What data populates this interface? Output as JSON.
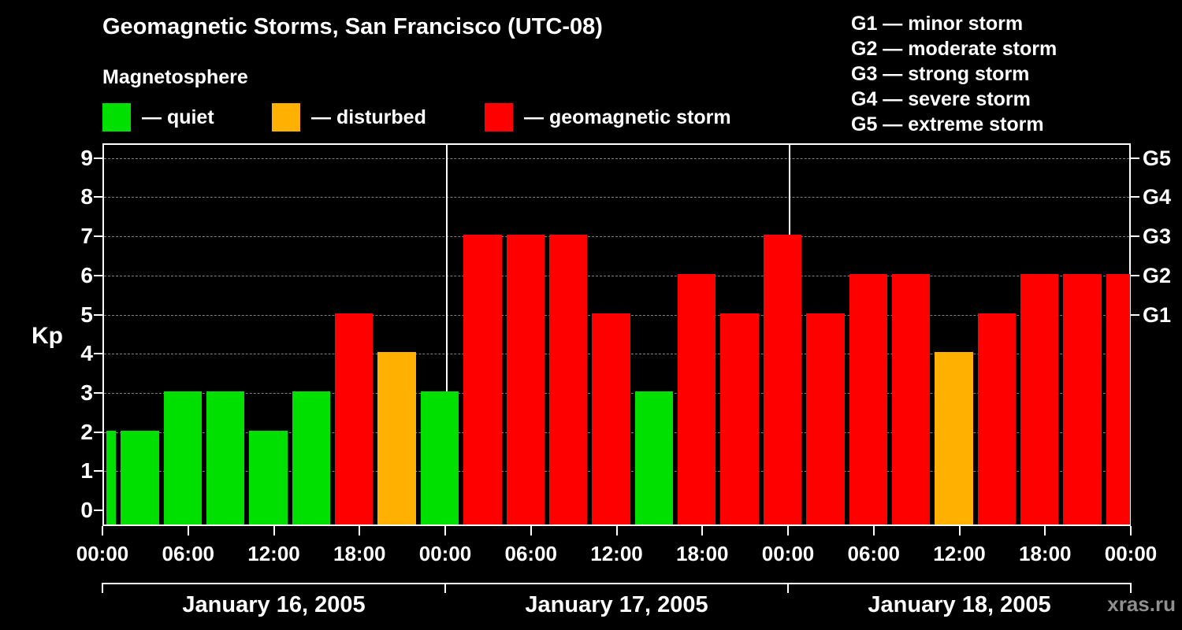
{
  "legend": {
    "heading": "Magnetosphere",
    "items": [
      {
        "key": "quiet",
        "label": "— quiet"
      },
      {
        "key": "disturbed",
        "label": "— disturbed"
      },
      {
        "key": "storm",
        "label": "— geomagnetic storm"
      }
    ]
  },
  "g_scale_legend": {
    "items": [
      "G1 — minor storm",
      "G2 — moderate storm",
      "G3 — strong storm",
      "G4 — severe storm",
      "G5 — extreme storm"
    ]
  },
  "watermark": "xras.ru",
  "colors": {
    "quiet": "#00e000",
    "disturbed": "#ffb000",
    "storm": "#ff0000",
    "background": "#000000",
    "text": "#ffffff",
    "grid": "#808080",
    "axis": "#ffffff",
    "watermark": "#8f8f8f"
  },
  "chart_data": {
    "type": "bar",
    "title": "Geomagnetic Storms, San Francisco (UTC-08)",
    "ylabel": "Kp",
    "ylim": [
      0,
      9
    ],
    "grid": "dashed-horizontal",
    "legend_position": "top",
    "y_ticks": [
      "0",
      "1",
      "2",
      "3",
      "4",
      "5",
      "6",
      "7",
      "8",
      "9"
    ],
    "g_ticks": [
      {
        "label": "G1",
        "kp": 5
      },
      {
        "label": "G2",
        "kp": 6
      },
      {
        "label": "G3",
        "kp": 7
      },
      {
        "label": "G4",
        "kp": 8
      },
      {
        "label": "G5",
        "kp": 9
      }
    ],
    "x_tick_labels": [
      "00:00",
      "06:00",
      "12:00",
      "18:00",
      "00:00",
      "06:00",
      "12:00",
      "18:00",
      "00:00",
      "06:00",
      "12:00",
      "18:00",
      "00:00"
    ],
    "days": [
      {
        "label": "January 16, 2005"
      },
      {
        "label": "January 17, 2005"
      },
      {
        "label": "January 18, 2005"
      }
    ],
    "bars": [
      {
        "start_hour": 0,
        "duration_hours": 1,
        "kp": 2,
        "status": "quiet"
      },
      {
        "start_hour": 1,
        "duration_hours": 3,
        "kp": 2,
        "status": "quiet"
      },
      {
        "start_hour": 4,
        "duration_hours": 3,
        "kp": 3,
        "status": "quiet"
      },
      {
        "start_hour": 7,
        "duration_hours": 3,
        "kp": 3,
        "status": "quiet"
      },
      {
        "start_hour": 10,
        "duration_hours": 3,
        "kp": 2,
        "status": "quiet"
      },
      {
        "start_hour": 13,
        "duration_hours": 3,
        "kp": 3,
        "status": "quiet"
      },
      {
        "start_hour": 16,
        "duration_hours": 3,
        "kp": 5,
        "status": "storm"
      },
      {
        "start_hour": 19,
        "duration_hours": 3,
        "kp": 4,
        "status": "disturbed"
      },
      {
        "start_hour": 22,
        "duration_hours": 3,
        "kp": 3,
        "status": "quiet"
      },
      {
        "start_hour": 25,
        "duration_hours": 3,
        "kp": 7,
        "status": "storm"
      },
      {
        "start_hour": 28,
        "duration_hours": 3,
        "kp": 7,
        "status": "storm"
      },
      {
        "start_hour": 31,
        "duration_hours": 3,
        "kp": 7,
        "status": "storm"
      },
      {
        "start_hour": 34,
        "duration_hours": 3,
        "kp": 5,
        "status": "storm"
      },
      {
        "start_hour": 37,
        "duration_hours": 3,
        "kp": 3,
        "status": "quiet"
      },
      {
        "start_hour": 40,
        "duration_hours": 3,
        "kp": 6,
        "status": "storm"
      },
      {
        "start_hour": 43,
        "duration_hours": 3,
        "kp": 5,
        "status": "storm"
      },
      {
        "start_hour": 46,
        "duration_hours": 3,
        "kp": 7,
        "status": "storm"
      },
      {
        "start_hour": 49,
        "duration_hours": 3,
        "kp": 5,
        "status": "storm"
      },
      {
        "start_hour": 52,
        "duration_hours": 3,
        "kp": 6,
        "status": "storm"
      },
      {
        "start_hour": 55,
        "duration_hours": 3,
        "kp": 6,
        "status": "storm"
      },
      {
        "start_hour": 58,
        "duration_hours": 3,
        "kp": 4,
        "status": "disturbed"
      },
      {
        "start_hour": 61,
        "duration_hours": 3,
        "kp": 5,
        "status": "storm"
      },
      {
        "start_hour": 64,
        "duration_hours": 3,
        "kp": 6,
        "status": "storm"
      },
      {
        "start_hour": 67,
        "duration_hours": 3,
        "kp": 6,
        "status": "storm"
      },
      {
        "start_hour": 70,
        "duration_hours": 2,
        "kp": 6,
        "status": "storm"
      }
    ]
  }
}
